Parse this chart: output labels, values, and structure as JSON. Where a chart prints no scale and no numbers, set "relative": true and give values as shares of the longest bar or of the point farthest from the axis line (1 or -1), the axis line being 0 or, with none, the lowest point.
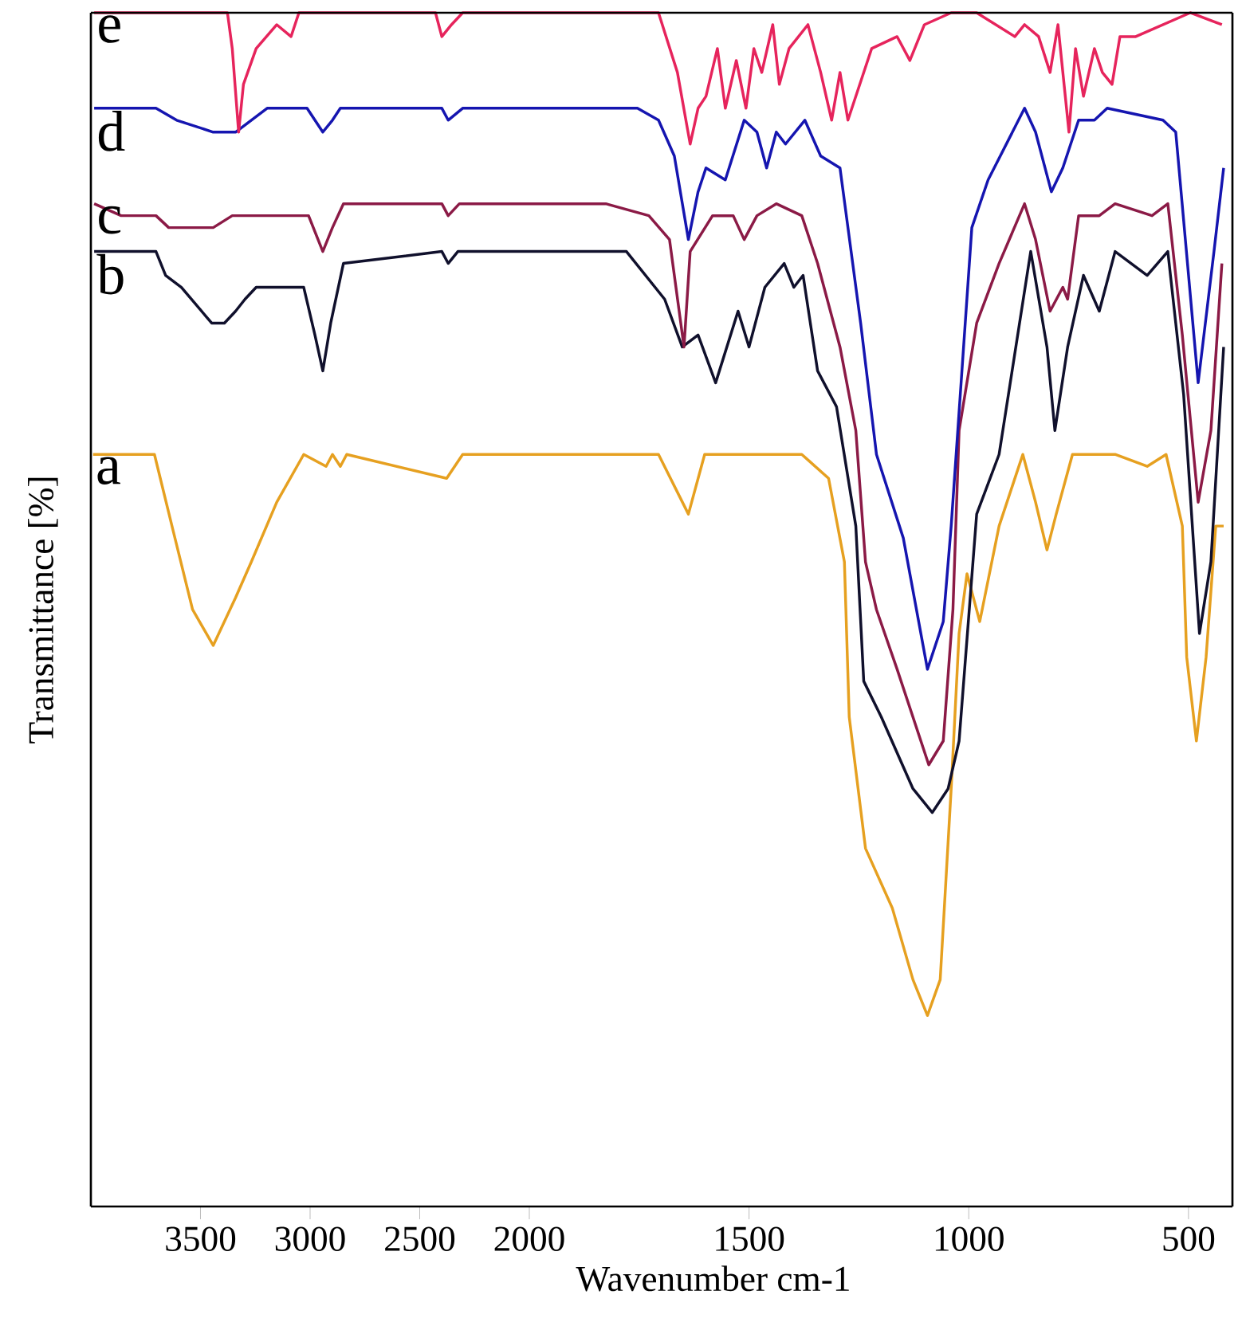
{
  "chart_data": [
    {
      "type": "line",
      "ylabel": "Transmittance [%]",
      "relative": true,
      "marker": "none",
      "line_style": "solid",
      "xlim": [
        4000,
        2000
      ],
      "xticks": [
        3500,
        3000,
        2500,
        2000
      ],
      "series": [
        {
          "name": "a",
          "color": "#e6a020",
          "x": [
            3990,
            3710,
            3630,
            3536,
            3442,
            3340,
            3268,
            3152,
            3029,
            2927,
            2898,
            2862,
            2833,
            2377,
            2304,
            2000
          ],
          "values": [
            0.63,
            0.63,
            0.57,
            0.5,
            0.47,
            0.51,
            0.54,
            0.59,
            0.63,
            0.62,
            0.63,
            0.62,
            0.63,
            0.61,
            0.63,
            0.63
          ]
        },
        {
          "name": "b",
          "color": "#10102c",
          "x": [
            3985,
            3703,
            3659,
            3587,
            3449,
            3391,
            3340,
            3297,
            3246,
            3029,
            2978,
            2942,
            2906,
            2848,
            2399,
            2370,
            2326,
            2000
          ],
          "values": [
            0.8,
            0.8,
            0.78,
            0.77,
            0.74,
            0.74,
            0.75,
            0.76,
            0.77,
            0.77,
            0.73,
            0.7,
            0.74,
            0.79,
            0.8,
            0.79,
            0.8,
            0.8
          ]
        },
        {
          "name": "c",
          "color": "#8b1a46",
          "x": [
            3985,
            3862,
            3703,
            3645,
            3442,
            3355,
            3007,
            2942,
            2898,
            2848,
            2399,
            2370,
            2319,
            2000
          ],
          "values": [
            0.84,
            0.83,
            0.83,
            0.82,
            0.82,
            0.83,
            0.83,
            0.8,
            0.82,
            0.84,
            0.84,
            0.83,
            0.84,
            0.84
          ]
        },
        {
          "name": "d",
          "color": "#1515b0",
          "x": [
            3985,
            3703,
            3609,
            3442,
            3340,
            3196,
            3014,
            2942,
            2898,
            2862,
            2399,
            2370,
            2304,
            2000
          ],
          "values": [
            0.92,
            0.92,
            0.91,
            0.9,
            0.9,
            0.92,
            0.92,
            0.9,
            0.91,
            0.92,
            0.92,
            0.91,
            0.92,
            0.92
          ]
        },
        {
          "name": "e",
          "color": "#e6245c",
          "x": [
            3985,
            3377,
            3355,
            3326,
            3304,
            3246,
            3152,
            3087,
            3051,
            2428,
            2399,
            2355,
            2304,
            2000
          ],
          "values": [
            1.0,
            1.0,
            0.97,
            0.9,
            0.94,
            0.97,
            0.99,
            0.98,
            1.0,
            1.0,
            0.98,
            0.99,
            1.0,
            1.0
          ]
        }
      ]
    },
    {
      "type": "line",
      "xlabel": "Wavenumber cm-1",
      "relative": true,
      "marker": "none",
      "line_style": "solid",
      "xlim": [
        2000,
        400
      ],
      "xticks": [
        1500,
        1000,
        500
      ],
      "series": [
        {
          "color": "#e6a020",
          "x": [
            2000,
            1826,
            1706,
            1638,
            1601,
            1380,
            1319,
            1283,
            1272,
            1235,
            1174,
            1127,
            1094,
            1065,
            1040,
            1022,
            1004,
            975,
            931,
            877,
            848,
            822,
            801,
            764,
            667,
            594,
            551,
            514,
            504,
            482,
            460,
            438,
            420
          ],
          "values": [
            0.63,
            0.63,
            0.63,
            0.58,
            0.63,
            0.63,
            0.61,
            0.54,
            0.41,
            0.3,
            0.25,
            0.19,
            0.16,
            0.19,
            0.35,
            0.48,
            0.53,
            0.49,
            0.57,
            0.63,
            0.59,
            0.55,
            0.58,
            0.63,
            0.63,
            0.62,
            0.63,
            0.57,
            0.46,
            0.39,
            0.46,
            0.57,
            0.57
          ]
        },
        {
          "color": "#10102c",
          "x": [
            2000,
            1826,
            1779,
            1692,
            1652,
            1616,
            1576,
            1525,
            1500,
            1464,
            1420,
            1398,
            1377,
            1344,
            1301,
            1257,
            1239,
            1199,
            1127,
            1083,
            1047,
            1022,
            982,
            931,
            859,
            822,
            804,
            775,
            739,
            703,
            667,
            594,
            547,
            511,
            475,
            449,
            420
          ],
          "values": [
            0.8,
            0.8,
            0.8,
            0.76,
            0.72,
            0.73,
            0.69,
            0.75,
            0.72,
            0.77,
            0.79,
            0.77,
            0.78,
            0.7,
            0.67,
            0.57,
            0.44,
            0.41,
            0.35,
            0.33,
            0.35,
            0.39,
            0.58,
            0.63,
            0.8,
            0.72,
            0.65,
            0.72,
            0.78,
            0.75,
            0.8,
            0.78,
            0.8,
            0.68,
            0.48,
            0.54,
            0.72
          ]
        },
        {
          "color": "#8b1a46",
          "x": [
            2000,
            1826,
            1728,
            1681,
            1648,
            1634,
            1583,
            1536,
            1511,
            1482,
            1438,
            1380,
            1344,
            1293,
            1257,
            1235,
            1210,
            1163,
            1127,
            1091,
            1058,
            1036,
            1022,
            982,
            931,
            873,
            848,
            815,
            786,
            775,
            750,
            703,
            667,
            583,
            547,
            514,
            478,
            449,
            424
          ],
          "values": [
            0.84,
            0.84,
            0.83,
            0.81,
            0.72,
            0.8,
            0.83,
            0.83,
            0.81,
            0.83,
            0.84,
            0.83,
            0.79,
            0.72,
            0.65,
            0.54,
            0.5,
            0.45,
            0.41,
            0.37,
            0.39,
            0.5,
            0.65,
            0.74,
            0.79,
            0.84,
            0.81,
            0.75,
            0.77,
            0.76,
            0.83,
            0.83,
            0.84,
            0.83,
            0.84,
            0.73,
            0.59,
            0.65,
            0.79
          ]
        },
        {
          "color": "#1515b0",
          "x": [
            2000,
            1826,
            1754,
            1706,
            1670,
            1638,
            1616,
            1598,
            1554,
            1511,
            1482,
            1460,
            1438,
            1417,
            1373,
            1337,
            1293,
            1246,
            1210,
            1149,
            1094,
            1058,
            1040,
            993,
            956,
            873,
            848,
            812,
            786,
            750,
            714,
            685,
            558,
            529,
            478,
            442,
            420
          ],
          "values": [
            0.92,
            0.92,
            0.92,
            0.91,
            0.88,
            0.81,
            0.85,
            0.87,
            0.86,
            0.91,
            0.9,
            0.87,
            0.9,
            0.89,
            0.91,
            0.88,
            0.87,
            0.74,
            0.63,
            0.56,
            0.45,
            0.49,
            0.57,
            0.82,
            0.86,
            0.92,
            0.9,
            0.85,
            0.87,
            0.91,
            0.91,
            0.92,
            0.91,
            0.9,
            0.69,
            0.8,
            0.87
          ]
        },
        {
          "color": "#e6245c",
          "x": [
            2000,
            1706,
            1663,
            1634,
            1616,
            1598,
            1572,
            1554,
            1529,
            1507,
            1489,
            1471,
            1446,
            1431,
            1409,
            1366,
            1337,
            1312,
            1293,
            1275,
            1221,
            1163,
            1134,
            1101,
            1040,
            982,
            895,
            873,
            841,
            815,
            797,
            772,
            757,
            739,
            714,
            696,
            674,
            656,
            620,
            558,
            496,
            424
          ],
          "values": [
            1.0,
            1.0,
            0.95,
            0.89,
            0.92,
            0.93,
            0.97,
            0.92,
            0.96,
            0.92,
            0.97,
            0.95,
            0.99,
            0.94,
            0.97,
            0.99,
            0.95,
            0.91,
            0.95,
            0.91,
            0.97,
            0.98,
            0.96,
            0.99,
            1.0,
            1.0,
            0.98,
            0.99,
            0.98,
            0.95,
            0.99,
            0.9,
            0.97,
            0.93,
            0.97,
            0.95,
            0.94,
            0.98,
            0.98,
            0.99,
            1.0,
            0.99
          ]
        }
      ]
    }
  ]
}
